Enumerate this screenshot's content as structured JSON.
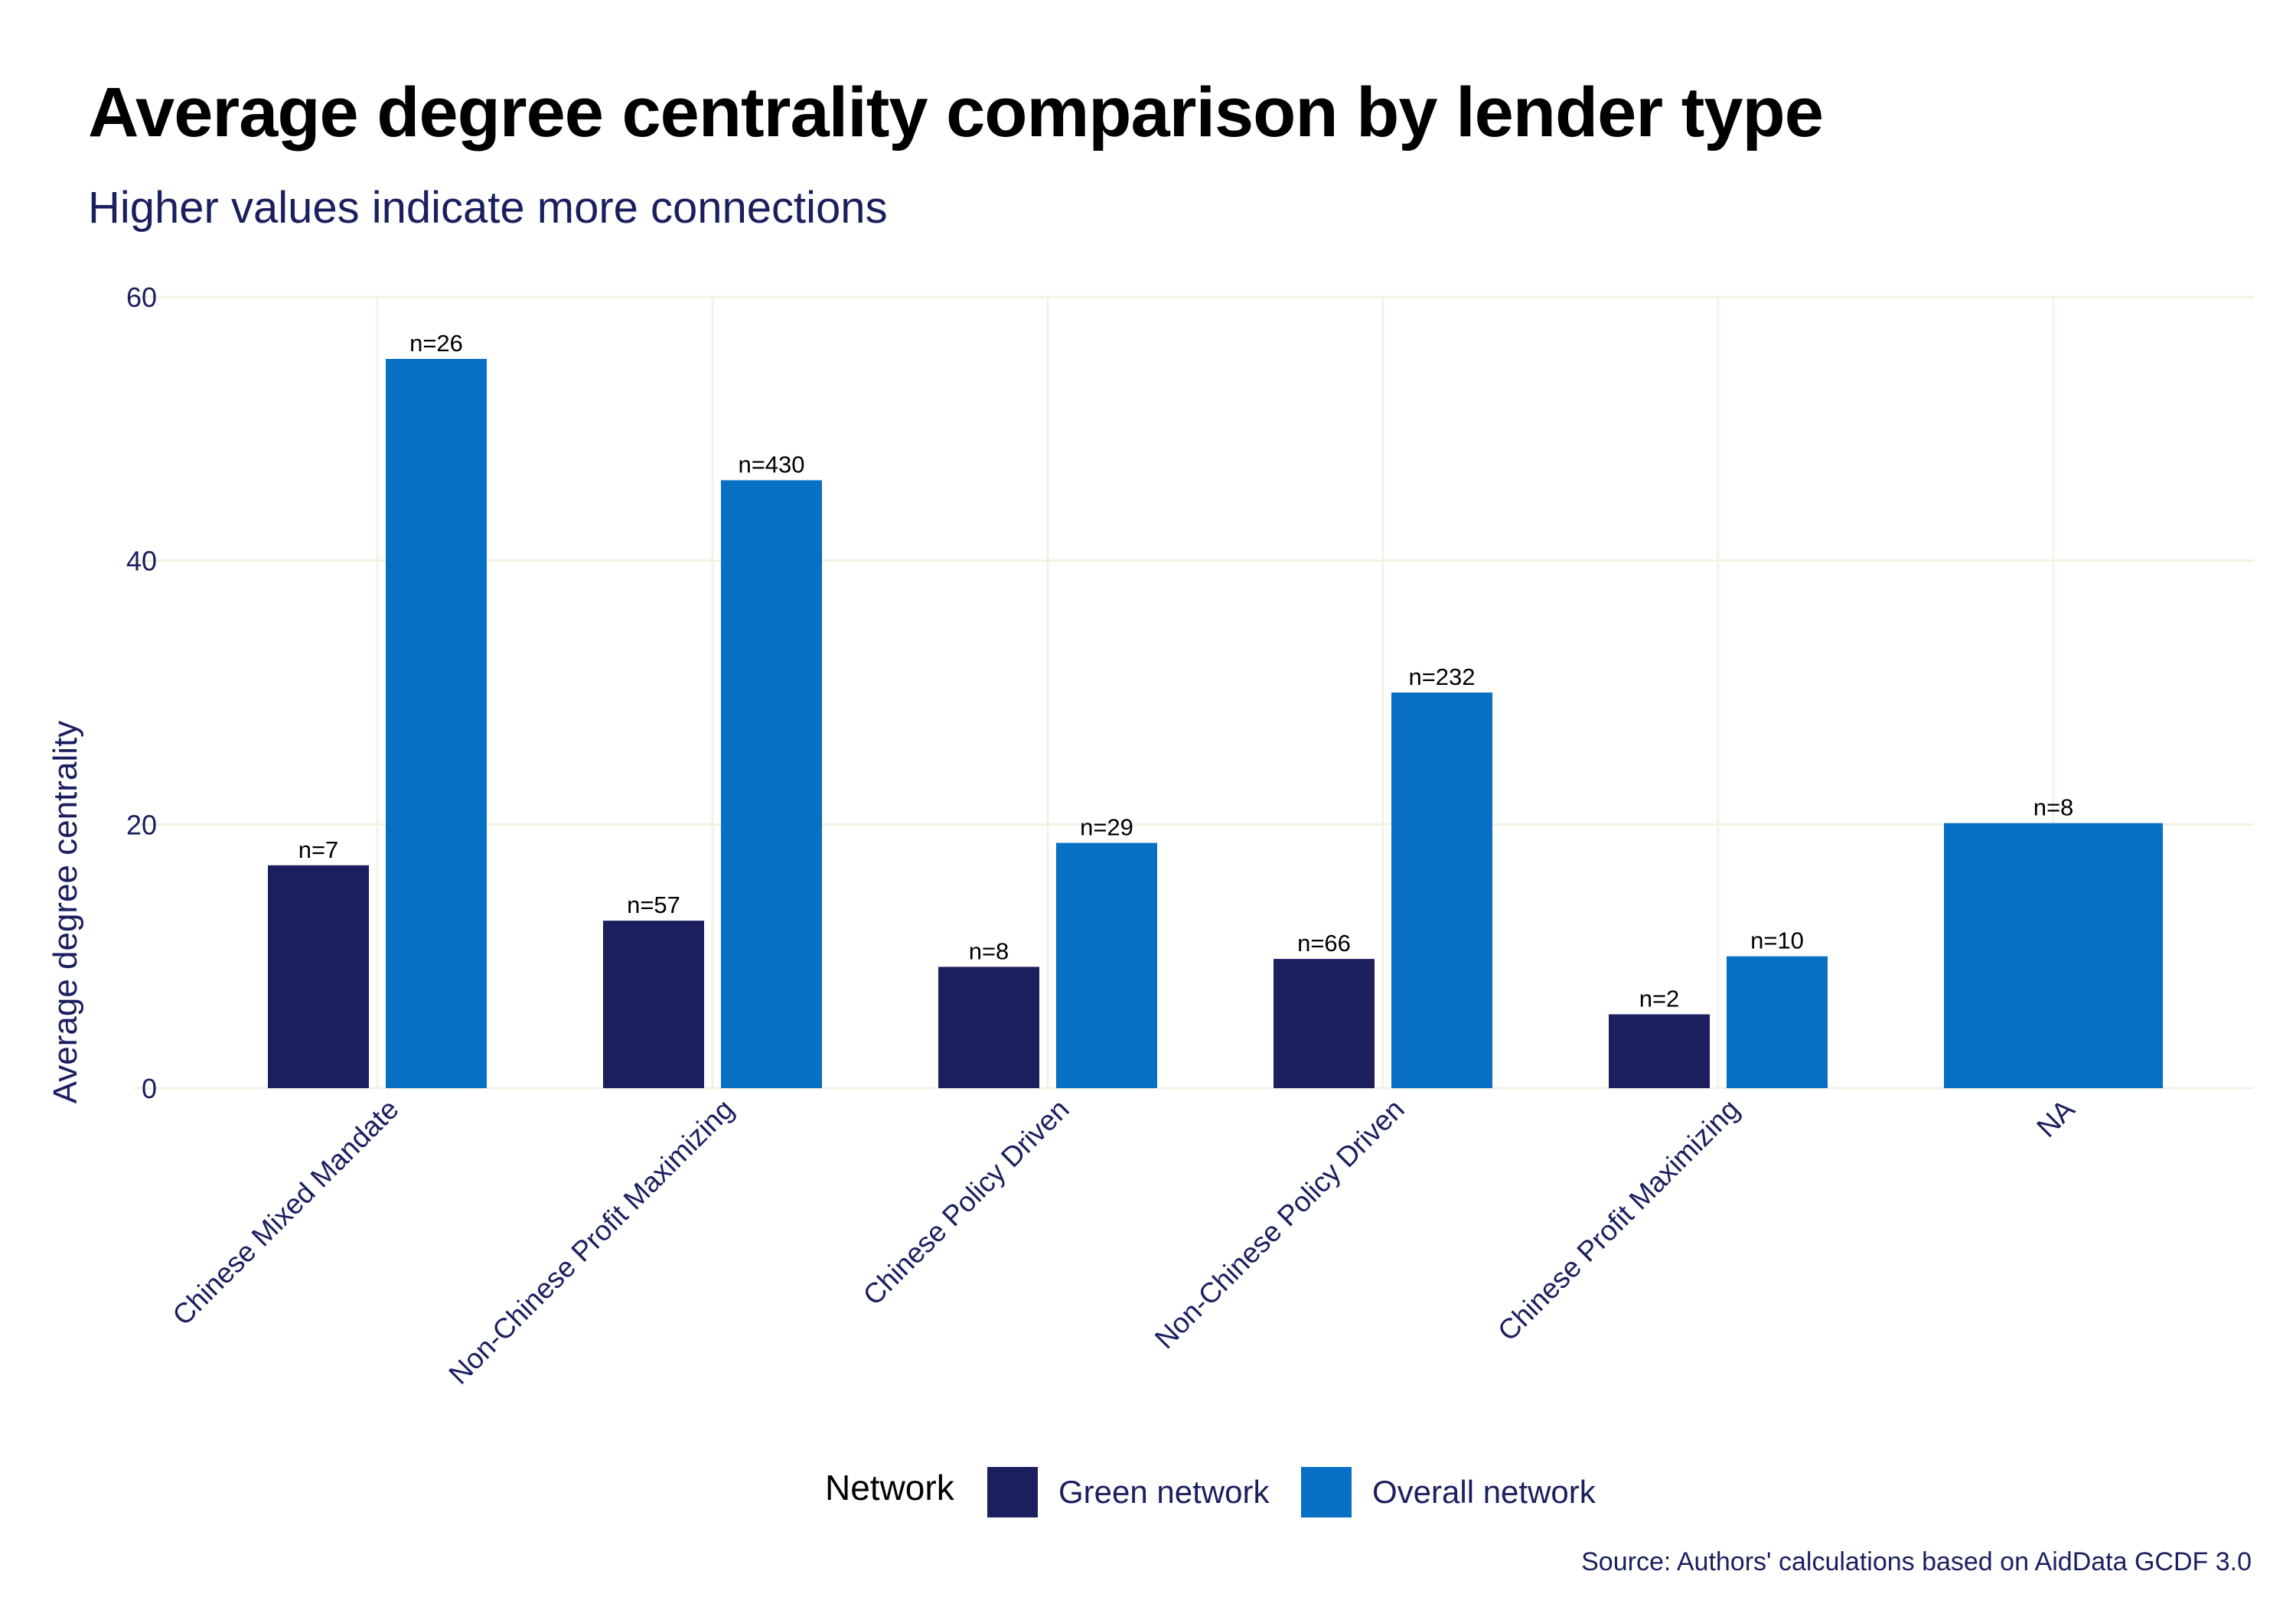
{
  "chart_data": {
    "type": "bar",
    "title": "Average degree centrality comparison by lender type",
    "subtitle": "Higher values indicate more connections",
    "xlabel": "",
    "ylabel": "Average degree centrality",
    "ylim": [
      0,
      60
    ],
    "yticks": [
      0,
      20,
      40,
      60
    ],
    "grid": true,
    "legend": {
      "title": "Network",
      "position": "bottom"
    },
    "categories": [
      "Chinese Mixed Mandate",
      "Non-Chinese Profit Maximizing",
      "Chinese Policy Driven",
      "Non-Chinese Policy Driven",
      "Chinese Profit Maximizing",
      "NA"
    ],
    "series": [
      {
        "name": "Green network",
        "color": "#1b1f5e",
        "values": [
          16.9,
          12.7,
          9.2,
          9.8,
          5.6,
          null
        ],
        "labels": [
          "n=7",
          "n=57",
          "n=8",
          "n=66",
          "n=2",
          ""
        ]
      },
      {
        "name": "Overall network",
        "color": "#0770c5",
        "values": [
          55.3,
          46.1,
          18.6,
          30.0,
          10.0,
          20.1
        ],
        "labels": [
          "n=26",
          "n=430",
          "n=29",
          "n=232",
          "n=10",
          "n=8"
        ]
      }
    ],
    "source": "Source: Authors' calculations based on AidData GCDF 3.0"
  }
}
